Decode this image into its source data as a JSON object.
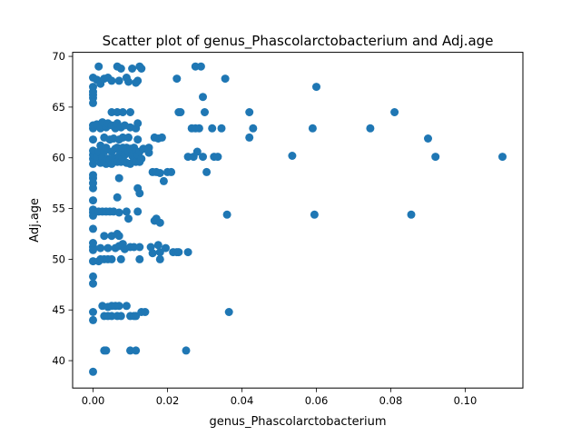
{
  "chart_data": {
    "type": "scatter",
    "title": "Scatter plot of genus_Phascolarctobacterium and Adj.age",
    "xlabel": "genus_Phascolarctobacterium",
    "ylabel": "Adj.age",
    "xlim": [
      -0.0055,
      0.1155
    ],
    "ylim": [
      37.3,
      70.4
    ],
    "xticks": [
      0.0,
      0.02,
      0.04,
      0.06,
      0.08,
      0.1
    ],
    "xtick_labels": [
      "0.00",
      "0.02",
      "0.04",
      "0.06",
      "0.08",
      "0.10"
    ],
    "yticks": [
      40,
      45,
      50,
      55,
      60,
      65,
      70
    ],
    "ytick_labels": [
      "40",
      "45",
      "50",
      "55",
      "60",
      "65",
      "70"
    ],
    "grid": false,
    "marker_color": "#1f77b4",
    "points": [
      [
        0.0,
        38.9
      ],
      [
        0.0,
        44.0
      ],
      [
        0.0,
        44.8
      ],
      [
        0.0,
        47.6
      ],
      [
        0.0,
        48.3
      ],
      [
        0.0,
        49.8
      ],
      [
        0.0,
        50.9
      ],
      [
        0.0,
        51.2
      ],
      [
        0.0,
        51.6
      ],
      [
        0.0,
        53.0
      ],
      [
        0.0,
        54.3
      ],
      [
        0.0,
        54.6
      ],
      [
        0.0,
        54.9
      ],
      [
        0.0,
        55.8
      ],
      [
        0.0,
        57.0
      ],
      [
        0.0,
        57.5
      ],
      [
        0.0,
        58.0
      ],
      [
        0.0,
        58.3
      ],
      [
        0.0,
        59.4
      ],
      [
        0.0,
        59.9
      ],
      [
        0.0,
        60.3
      ],
      [
        0.0,
        60.7
      ],
      [
        0.0,
        61.8
      ],
      [
        0.0,
        62.9
      ],
      [
        0.0,
        63.2
      ],
      [
        0.0,
        65.4
      ],
      [
        0.0,
        65.9
      ],
      [
        0.0,
        66.2
      ],
      [
        0.0,
        66.5
      ],
      [
        0.0,
        67.0
      ],
      [
        0.0,
        67.9
      ],
      [
        0.001,
        60.0
      ],
      [
        0.001,
        63.3
      ],
      [
        0.001,
        67.7
      ],
      [
        0.0015,
        49.8
      ],
      [
        0.0015,
        54.7
      ],
      [
        0.0015,
        60.6
      ],
      [
        0.0015,
        69.0
      ],
      [
        0.002,
        50.0
      ],
      [
        0.002,
        51.1
      ],
      [
        0.002,
        59.5
      ],
      [
        0.002,
        61.2
      ],
      [
        0.002,
        62.9
      ],
      [
        0.002,
        67.3
      ],
      [
        0.0025,
        45.4
      ],
      [
        0.0025,
        54.7
      ],
      [
        0.0025,
        60.0
      ],
      [
        0.0025,
        63.5
      ],
      [
        0.003,
        41.0
      ],
      [
        0.003,
        44.4
      ],
      [
        0.003,
        50.0
      ],
      [
        0.003,
        52.3
      ],
      [
        0.003,
        59.6
      ],
      [
        0.003,
        60.6
      ],
      [
        0.003,
        62.0
      ],
      [
        0.003,
        67.8
      ],
      [
        0.0035,
        41.0
      ],
      [
        0.0035,
        54.7
      ],
      [
        0.0035,
        59.4
      ],
      [
        0.0035,
        61.0
      ],
      [
        0.0035,
        63.0
      ],
      [
        0.004,
        44.4
      ],
      [
        0.004,
        45.3
      ],
      [
        0.004,
        50.0
      ],
      [
        0.004,
        51.1
      ],
      [
        0.004,
        59.9
      ],
      [
        0.004,
        63.4
      ],
      [
        0.004,
        67.9
      ],
      [
        0.0045,
        54.7
      ],
      [
        0.0045,
        59.8
      ],
      [
        0.0045,
        61.8
      ],
      [
        0.005,
        44.4
      ],
      [
        0.005,
        45.4
      ],
      [
        0.005,
        50.0
      ],
      [
        0.005,
        52.3
      ],
      [
        0.005,
        59.4
      ],
      [
        0.005,
        60.6
      ],
      [
        0.005,
        63.2
      ],
      [
        0.005,
        64.5
      ],
      [
        0.005,
        67.6
      ],
      [
        0.0055,
        54.7
      ],
      [
        0.0055,
        60.0
      ],
      [
        0.0055,
        61.9
      ],
      [
        0.006,
        45.4
      ],
      [
        0.006,
        51.1
      ],
      [
        0.006,
        59.7
      ],
      [
        0.006,
        60.9
      ],
      [
        0.006,
        62.9
      ],
      [
        0.0065,
        44.4
      ],
      [
        0.0065,
        52.5
      ],
      [
        0.0065,
        56.1
      ],
      [
        0.0065,
        59.6
      ],
      [
        0.0065,
        61.0
      ],
      [
        0.0065,
        63.4
      ],
      [
        0.0065,
        64.5
      ],
      [
        0.0065,
        69.0
      ],
      [
        0.007,
        45.4
      ],
      [
        0.007,
        51.3
      ],
      [
        0.007,
        52.3
      ],
      [
        0.007,
        54.6
      ],
      [
        0.007,
        58.0
      ],
      [
        0.007,
        60.2
      ],
      [
        0.007,
        61.8
      ],
      [
        0.007,
        67.6
      ],
      [
        0.0075,
        44.4
      ],
      [
        0.0075,
        50.0
      ],
      [
        0.0075,
        59.6
      ],
      [
        0.0075,
        60.6
      ],
      [
        0.0075,
        63.0
      ],
      [
        0.0075,
        68.8
      ],
      [
        0.008,
        51.5
      ],
      [
        0.008,
        59.9
      ],
      [
        0.008,
        61.0
      ],
      [
        0.008,
        62.0
      ],
      [
        0.008,
        64.5
      ],
      [
        0.0085,
        51.0
      ],
      [
        0.0085,
        60.3
      ],
      [
        0.0085,
        63.2
      ],
      [
        0.009,
        45.4
      ],
      [
        0.009,
        54.7
      ],
      [
        0.009,
        59.5
      ],
      [
        0.009,
        61.0
      ],
      [
        0.009,
        67.9
      ],
      [
        0.0095,
        54.0
      ],
      [
        0.0095,
        60.6
      ],
      [
        0.0095,
        62.0
      ],
      [
        0.0095,
        67.5
      ],
      [
        0.01,
        41.0
      ],
      [
        0.01,
        44.4
      ],
      [
        0.01,
        51.2
      ],
      [
        0.01,
        59.4
      ],
      [
        0.01,
        60.9
      ],
      [
        0.01,
        63.0
      ],
      [
        0.01,
        64.5
      ],
      [
        0.0105,
        60.2
      ],
      [
        0.0105,
        68.8
      ],
      [
        0.011,
        44.4
      ],
      [
        0.011,
        51.2
      ],
      [
        0.011,
        59.8
      ],
      [
        0.011,
        61.0
      ],
      [
        0.0115,
        41.0
      ],
      [
        0.0115,
        44.4
      ],
      [
        0.0115,
        59.6
      ],
      [
        0.0115,
        60.6
      ],
      [
        0.0115,
        62.9
      ],
      [
        0.0115,
        67.4
      ],
      [
        0.012,
        54.7
      ],
      [
        0.012,
        57.0
      ],
      [
        0.012,
        60.3
      ],
      [
        0.012,
        61.8
      ],
      [
        0.012,
        63.4
      ],
      [
        0.012,
        67.6
      ],
      [
        0.0125,
        50.0
      ],
      [
        0.0125,
        51.2
      ],
      [
        0.0125,
        56.5
      ],
      [
        0.0125,
        59.6
      ],
      [
        0.0125,
        60.6
      ],
      [
        0.0125,
        69.0
      ],
      [
        0.013,
        44.8
      ],
      [
        0.013,
        59.9
      ],
      [
        0.013,
        68.8
      ],
      [
        0.0135,
        60.9
      ],
      [
        0.014,
        44.8
      ],
      [
        0.015,
        60.5
      ],
      [
        0.015,
        61.0
      ],
      [
        0.0155,
        51.2
      ],
      [
        0.016,
        50.6
      ],
      [
        0.016,
        58.6
      ],
      [
        0.0165,
        53.8
      ],
      [
        0.0165,
        62.0
      ],
      [
        0.017,
        54.0
      ],
      [
        0.017,
        58.6
      ],
      [
        0.0175,
        51.4
      ],
      [
        0.0175,
        61.9
      ],
      [
        0.018,
        50.0
      ],
      [
        0.018,
        50.7
      ],
      [
        0.018,
        53.6
      ],
      [
        0.018,
        58.5
      ],
      [
        0.0185,
        62.0
      ],
      [
        0.019,
        57.7
      ],
      [
        0.0195,
        51.1
      ],
      [
        0.02,
        58.6
      ],
      [
        0.021,
        58.6
      ],
      [
        0.0215,
        50.7
      ],
      [
        0.0225,
        67.8
      ],
      [
        0.0225,
        50.7
      ],
      [
        0.023,
        50.7
      ],
      [
        0.023,
        64.5
      ],
      [
        0.0235,
        64.5
      ],
      [
        0.025,
        41.0
      ],
      [
        0.0255,
        50.7
      ],
      [
        0.0255,
        60.1
      ],
      [
        0.0265,
        62.9
      ],
      [
        0.027,
        60.1
      ],
      [
        0.0275,
        62.9
      ],
      [
        0.0275,
        69.0
      ],
      [
        0.028,
        60.6
      ],
      [
        0.0285,
        62.9
      ],
      [
        0.029,
        69.0
      ],
      [
        0.0295,
        66.0
      ],
      [
        0.0295,
        60.1
      ],
      [
        0.03,
        64.5
      ],
      [
        0.0305,
        58.6
      ],
      [
        0.032,
        62.9
      ],
      [
        0.0325,
        60.1
      ],
      [
        0.0335,
        60.1
      ],
      [
        0.0345,
        62.9
      ],
      [
        0.0355,
        67.8
      ],
      [
        0.036,
        54.4
      ],
      [
        0.0365,
        44.8
      ],
      [
        0.042,
        64.5
      ],
      [
        0.042,
        62.0
      ],
      [
        0.043,
        62.9
      ],
      [
        0.0535,
        60.2
      ],
      [
        0.059,
        62.9
      ],
      [
        0.0595,
        54.4
      ],
      [
        0.06,
        67.0
      ],
      [
        0.0745,
        62.9
      ],
      [
        0.081,
        64.5
      ],
      [
        0.0855,
        54.4
      ],
      [
        0.09,
        61.9
      ],
      [
        0.092,
        60.1
      ],
      [
        0.11,
        60.1
      ]
    ]
  }
}
